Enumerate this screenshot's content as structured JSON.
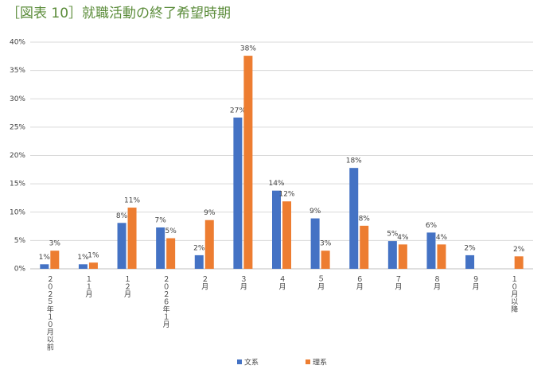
{
  "chart_data": {
    "type": "bar",
    "title": "［図表 10］就職活動の終了希望時期",
    "categories": [
      "２０２５年１０月以前",
      "１１月",
      "１２月",
      "２０２６年１月",
      "２月",
      "３月",
      "４月",
      "５月",
      "６月",
      "７月",
      "８月",
      "９月",
      "１０月以降"
    ],
    "series": [
      {
        "name": "文系",
        "color": "#4472c4",
        "values": [
          0.8,
          0.8,
          8.1,
          7.3,
          2.4,
          26.7,
          13.8,
          8.9,
          17.8,
          4.9,
          6.4,
          2.4,
          null
        ],
        "value_labels": [
          "1%",
          "1%",
          "8%",
          "7%",
          "2%",
          "27%",
          "14%",
          "9%",
          "18%",
          "5%",
          "6%",
          "2%",
          null
        ]
      },
      {
        "name": "理系",
        "color": "#ed7d31",
        "values": [
          3.2,
          1.1,
          10.8,
          5.4,
          8.6,
          37.6,
          11.9,
          3.2,
          7.6,
          4.3,
          4.3,
          null,
          2.2
        ],
        "value_labels": [
          "3%",
          "1%",
          "11%",
          "5%",
          "9%",
          "38%",
          "12%",
          "3%",
          "8%",
          "4%",
          "4%",
          null,
          "2%"
        ]
      }
    ],
    "ylim": [
      0,
      40
    ],
    "yticks": [
      {
        "value": 0,
        "label": "0%"
      },
      {
        "value": 5,
        "label": "5%"
      },
      {
        "value": 10,
        "label": "10%"
      },
      {
        "value": 15,
        "label": "15%"
      },
      {
        "value": 20,
        "label": "20%"
      },
      {
        "value": 25,
        "label": "25%"
      },
      {
        "value": 30,
        "label": "30%"
      },
      {
        "value": 35,
        "label": "35%"
      },
      {
        "value": 40,
        "label": "40%"
      }
    ],
    "grid": true,
    "legend": "bottom"
  }
}
